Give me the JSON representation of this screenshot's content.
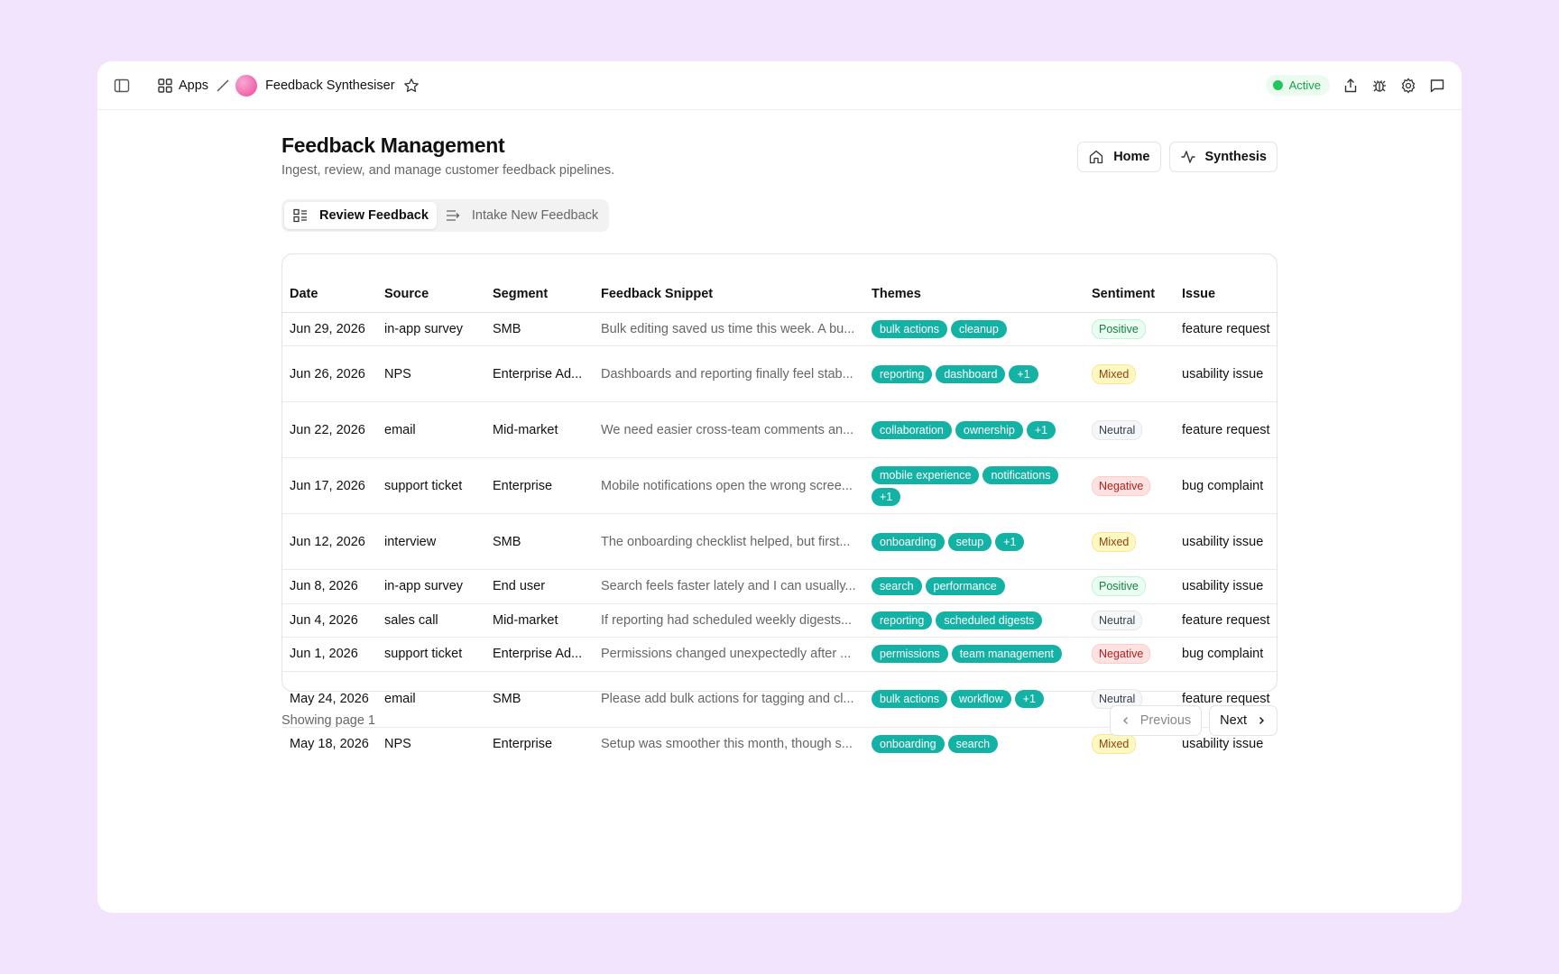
{
  "header": {
    "apps": "Apps",
    "app_name": "Feedback Synthesiser",
    "status": "Active"
  },
  "page": {
    "title": "Feedback Management",
    "subtitle": "Ingest, review, and manage customer feedback pipelines.",
    "buttons": [
      "Home",
      "Synthesis"
    ],
    "tabs": [
      "Review Feedback",
      "Intake New Feedback"
    ]
  },
  "table": {
    "columns": [
      "Date",
      "Source",
      "Segment",
      "Feedback Snippet",
      "Themes",
      "Sentiment",
      "Issue"
    ],
    "rows": [
      {
        "date": "Jun 29, 2026",
        "source": "in-app survey",
        "segment": "SMB",
        "snippet": "Bulk editing saved us time this week. A bu...",
        "themes": [
          "bulk actions",
          "cleanup"
        ],
        "sentiment": "Positive",
        "issue": "feature request"
      },
      {
        "date": "Jun 26, 2026",
        "source": "NPS",
        "segment": "Enterprise Ad...",
        "snippet": "Dashboards and reporting finally feel stab...",
        "themes": [
          "reporting",
          "dashboard",
          "+1"
        ],
        "sentiment": "Mixed",
        "issue": "usability issue"
      },
      {
        "date": "Jun 22, 2026",
        "source": "email",
        "segment": "Mid-market",
        "snippet": "We need easier cross-team comments an...",
        "themes": [
          "collaboration",
          "ownership",
          "+1"
        ],
        "sentiment": "Neutral",
        "issue": "feature request"
      },
      {
        "date": "Jun 17, 2026",
        "source": "support ticket",
        "segment": "Enterprise",
        "snippet": "Mobile notifications open the wrong scree...",
        "themes": [
          "mobile experience",
          "notifications",
          "+1"
        ],
        "sentiment": "Negative",
        "issue": "bug complaint"
      },
      {
        "date": "Jun 12, 2026",
        "source": "interview",
        "segment": "SMB",
        "snippet": "The onboarding checklist helped, but first...",
        "themes": [
          "onboarding",
          "setup",
          "+1"
        ],
        "sentiment": "Mixed",
        "issue": "usability issue"
      },
      {
        "date": "Jun 8, 2026",
        "source": "in-app survey",
        "segment": "End user",
        "snippet": "Search feels faster lately and I can usually...",
        "themes": [
          "search",
          "performance"
        ],
        "sentiment": "Positive",
        "issue": "usability issue"
      },
      {
        "date": "Jun 4, 2026",
        "source": "sales call",
        "segment": "Mid-market",
        "snippet": "If reporting had scheduled weekly digests...",
        "themes": [
          "reporting",
          "scheduled digests"
        ],
        "sentiment": "Neutral",
        "issue": "feature request"
      },
      {
        "date": "Jun 1, 2026",
        "source": "support ticket",
        "segment": "Enterprise Ad...",
        "snippet": "Permissions changed unexpectedly after ...",
        "themes": [
          "permissions",
          "team management"
        ],
        "sentiment": "Negative",
        "issue": "bug complaint"
      },
      {
        "date": "May 24, 2026",
        "source": "email",
        "segment": "SMB",
        "snippet": "Please add bulk actions for tagging and cl...",
        "themes": [
          "bulk actions",
          "workflow",
          "+1"
        ],
        "sentiment": "Neutral",
        "issue": "feature request"
      },
      {
        "date": "May 18, 2026",
        "source": "NPS",
        "segment": "Enterprise",
        "snippet": "Setup was smoother this month, though s...",
        "themes": [
          "onboarding",
          "search"
        ],
        "sentiment": "Mixed",
        "issue": "usability issue"
      }
    ]
  },
  "footer": {
    "page_info": "Showing page 1",
    "previous": "Previous",
    "next": "Next"
  }
}
